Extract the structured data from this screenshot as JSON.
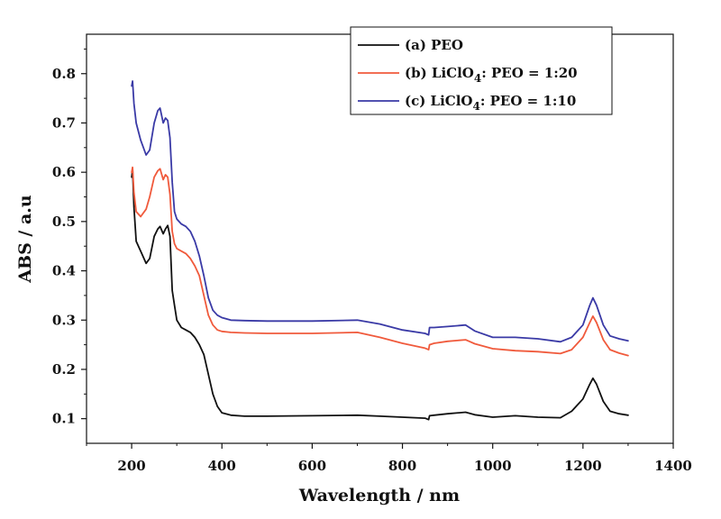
{
  "chart_data": {
    "type": "line",
    "xlabel": "Wavelength / nm",
    "ylabel": "ABS / a.u",
    "xlim": [
      100,
      1400
    ],
    "ylim": [
      0.05,
      0.88
    ],
    "xticks": [
      200,
      400,
      600,
      800,
      1000,
      1200,
      1400
    ],
    "xtick_labels": [
      "200",
      "400",
      "600",
      "800",
      "1000",
      "1200",
      "1400"
    ],
    "yticks": [
      0.1,
      0.2,
      0.3,
      0.4,
      0.5,
      0.6,
      0.7,
      0.8
    ],
    "ytick_labels": [
      "0.1",
      "0.2",
      "0.3",
      "0.4",
      "0.5",
      "0.6",
      "0.7",
      "0.8"
    ],
    "legend_position": "top-right",
    "series": [
      {
        "name": "(a) PEO",
        "label_prefix": "(a) PEO",
        "label_sub": "",
        "label_suffix": "",
        "color": "#111111",
        "x": [
          200,
          202,
          205,
          210,
          220,
          232,
          240,
          250,
          258,
          263,
          270,
          275,
          280,
          285,
          290,
          295,
          300,
          310,
          320,
          330,
          340,
          350,
          360,
          370,
          380,
          390,
          400,
          420,
          450,
          500,
          600,
          700,
          750,
          800,
          850,
          858,
          860,
          870,
          900,
          940,
          960,
          1000,
          1050,
          1100,
          1150,
          1175,
          1200,
          1215,
          1222,
          1230,
          1245,
          1260,
          1280,
          1300
        ],
        "y": [
          0.59,
          0.605,
          0.53,
          0.46,
          0.44,
          0.415,
          0.425,
          0.47,
          0.485,
          0.49,
          0.475,
          0.485,
          0.492,
          0.47,
          0.36,
          0.33,
          0.3,
          0.285,
          0.28,
          0.275,
          0.265,
          0.25,
          0.23,
          0.19,
          0.15,
          0.125,
          0.112,
          0.107,
          0.105,
          0.105,
          0.106,
          0.107,
          0.105,
          0.103,
          0.101,
          0.098,
          0.106,
          0.107,
          0.11,
          0.113,
          0.108,
          0.103,
          0.106,
          0.103,
          0.102,
          0.115,
          0.14,
          0.17,
          0.182,
          0.17,
          0.135,
          0.115,
          0.11,
          0.107
        ]
      },
      {
        "name": "(b) LiClO4: PEO = 1:20",
        "label_prefix": "(b) LiClO",
        "label_sub": "4",
        "label_suffix": ": PEO = 1:20",
        "color": "#f05a3c",
        "x": [
          200,
          202,
          205,
          210,
          220,
          232,
          240,
          250,
          258,
          263,
          270,
          275,
          280,
          285,
          290,
          295,
          300,
          310,
          320,
          330,
          340,
          350,
          360,
          370,
          380,
          390,
          400,
          420,
          450,
          500,
          600,
          700,
          750,
          800,
          850,
          858,
          860,
          870,
          900,
          940,
          960,
          1000,
          1050,
          1100,
          1150,
          1175,
          1200,
          1215,
          1222,
          1230,
          1245,
          1260,
          1280,
          1300
        ],
        "y": [
          0.6,
          0.61,
          0.56,
          0.52,
          0.51,
          0.525,
          0.55,
          0.59,
          0.603,
          0.607,
          0.585,
          0.595,
          0.59,
          0.555,
          0.48,
          0.455,
          0.445,
          0.44,
          0.435,
          0.425,
          0.41,
          0.39,
          0.35,
          0.31,
          0.29,
          0.28,
          0.277,
          0.275,
          0.274,
          0.273,
          0.273,
          0.275,
          0.265,
          0.253,
          0.243,
          0.24,
          0.25,
          0.253,
          0.257,
          0.26,
          0.252,
          0.242,
          0.238,
          0.236,
          0.232,
          0.24,
          0.265,
          0.295,
          0.308,
          0.295,
          0.26,
          0.24,
          0.233,
          0.228
        ]
      },
      {
        "name": "(c) LiClO4: PEO = 1:10",
        "label_prefix": "(c) LiClO",
        "label_sub": "4",
        "label_suffix": ": PEO = 1:10",
        "color": "#3a3aa6",
        "x": [
          200,
          202,
          205,
          210,
          220,
          232,
          240,
          250,
          258,
          263,
          270,
          275,
          280,
          285,
          290,
          295,
          300,
          310,
          320,
          330,
          340,
          350,
          360,
          370,
          380,
          390,
          400,
          420,
          450,
          500,
          600,
          700,
          750,
          800,
          850,
          858,
          860,
          870,
          900,
          940,
          960,
          1000,
          1050,
          1100,
          1150,
          1175,
          1200,
          1215,
          1222,
          1230,
          1245,
          1260,
          1280,
          1300
        ],
        "y": [
          0.775,
          0.785,
          0.74,
          0.7,
          0.665,
          0.635,
          0.645,
          0.7,
          0.725,
          0.73,
          0.7,
          0.71,
          0.705,
          0.67,
          0.58,
          0.52,
          0.505,
          0.495,
          0.49,
          0.48,
          0.46,
          0.43,
          0.39,
          0.345,
          0.32,
          0.31,
          0.305,
          0.3,
          0.299,
          0.298,
          0.298,
          0.3,
          0.292,
          0.28,
          0.273,
          0.27,
          0.285,
          0.285,
          0.287,
          0.29,
          0.278,
          0.265,
          0.265,
          0.262,
          0.256,
          0.265,
          0.29,
          0.33,
          0.345,
          0.33,
          0.29,
          0.268,
          0.262,
          0.258
        ]
      }
    ]
  }
}
